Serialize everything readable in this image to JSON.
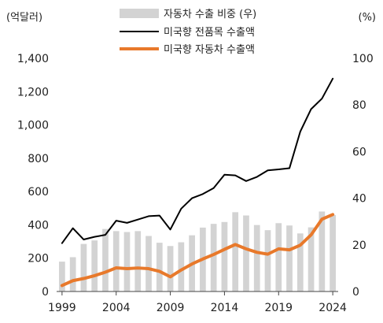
{
  "chart_data": {
    "type": "bar+line",
    "left_axis_unit": "(억달러)",
    "right_axis_unit": "(%)",
    "y_left_ticks": [
      "0",
      "200",
      "400",
      "600",
      "800",
      "1,000",
      "1,200",
      "1,400"
    ],
    "y_left_lim": [
      0,
      1400
    ],
    "y_right_ticks": [
      "0",
      "20",
      "40",
      "60",
      "80",
      "100"
    ],
    "y_right_lim": [
      0,
      100
    ],
    "x_tick_labels": [
      "1999",
      "2004",
      "2009",
      "2014",
      "2019",
      "2024"
    ],
    "categories": [
      1999,
      2000,
      2001,
      2002,
      2003,
      2004,
      2005,
      2006,
      2007,
      2008,
      2009,
      2010,
      2011,
      2012,
      2013,
      2014,
      2015,
      2016,
      2017,
      2018,
      2019,
      2020,
      2021,
      2022,
      2023,
      2024
    ],
    "grid": false,
    "legend_position": "top",
    "series": [
      {
        "name": "자동차 수출 비중 (우)",
        "type": "bar",
        "axis": "right",
        "color": "#d3d3d3",
        "values": [
          12.8,
          14.7,
          20.4,
          21.9,
          26.8,
          25.9,
          25.5,
          25.9,
          23.8,
          20.9,
          19.5,
          21.1,
          24.1,
          27.4,
          29.0,
          29.8,
          34.0,
          32.6,
          28.5,
          26.3,
          29.3,
          28.3,
          24.9,
          27.5,
          34.3,
          32.8
        ]
      },
      {
        "name": "미국향 전품목 수출액",
        "type": "line",
        "axis": "left",
        "color": "#000000",
        "values": [
          290,
          380,
          312,
          328,
          340,
          425,
          412,
          432,
          452,
          456,
          372,
          497,
          560,
          585,
          621,
          701,
          697,
          663,
          688,
          727,
          733,
          740,
          960,
          1095,
          1158,
          1278
        ]
      },
      {
        "name": "미국향 자동차 수출액",
        "type": "line",
        "axis": "left",
        "color": "#e8792b",
        "values": [
          36,
          65,
          78,
          95,
          116,
          142,
          137,
          141,
          137,
          121,
          88,
          129,
          165,
          195,
          222,
          253,
          282,
          256,
          235,
          224,
          256,
          250,
          278,
          340,
          434,
          462
        ]
      }
    ]
  }
}
